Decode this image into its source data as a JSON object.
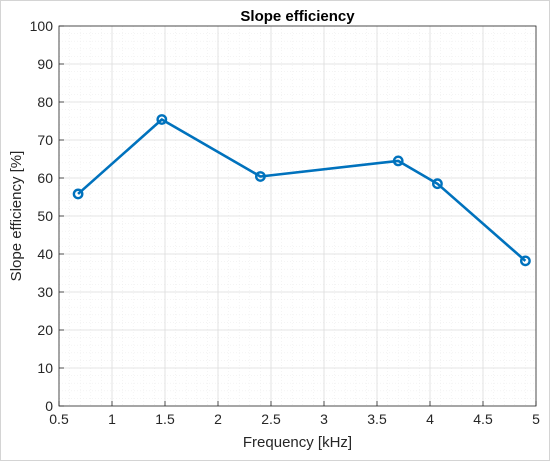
{
  "chart_data": {
    "type": "line",
    "title": "Slope efficiency",
    "xlabel": "Frequency [kHz]",
    "ylabel": "Slope efficiency [%]",
    "xlim": [
      0.5,
      5
    ],
    "ylim": [
      0,
      100
    ],
    "x_ticks": [
      0.5,
      1,
      1.5,
      2,
      2.5,
      3,
      3.5,
      4,
      4.5,
      5
    ],
    "x_tick_labels": [
      "0.5",
      "1",
      "1.5",
      "2",
      "2.5",
      "3",
      "3.5",
      "4",
      "4.5",
      "5"
    ],
    "y_ticks": [
      0,
      10,
      20,
      30,
      40,
      50,
      60,
      70,
      80,
      90,
      100
    ],
    "y_tick_labels": [
      "0",
      "10",
      "20",
      "30",
      "40",
      "50",
      "60",
      "70",
      "80",
      "90",
      "100"
    ],
    "grid": true,
    "minor_grid": true,
    "series": [
      {
        "x": [
          0.68,
          1.47,
          2.4,
          3.7,
          4.07,
          4.9
        ],
        "y": [
          55.8,
          75.4,
          60.4,
          64.5,
          58.5,
          38.2
        ],
        "color": "#0072BD",
        "marker": "circle"
      }
    ]
  }
}
